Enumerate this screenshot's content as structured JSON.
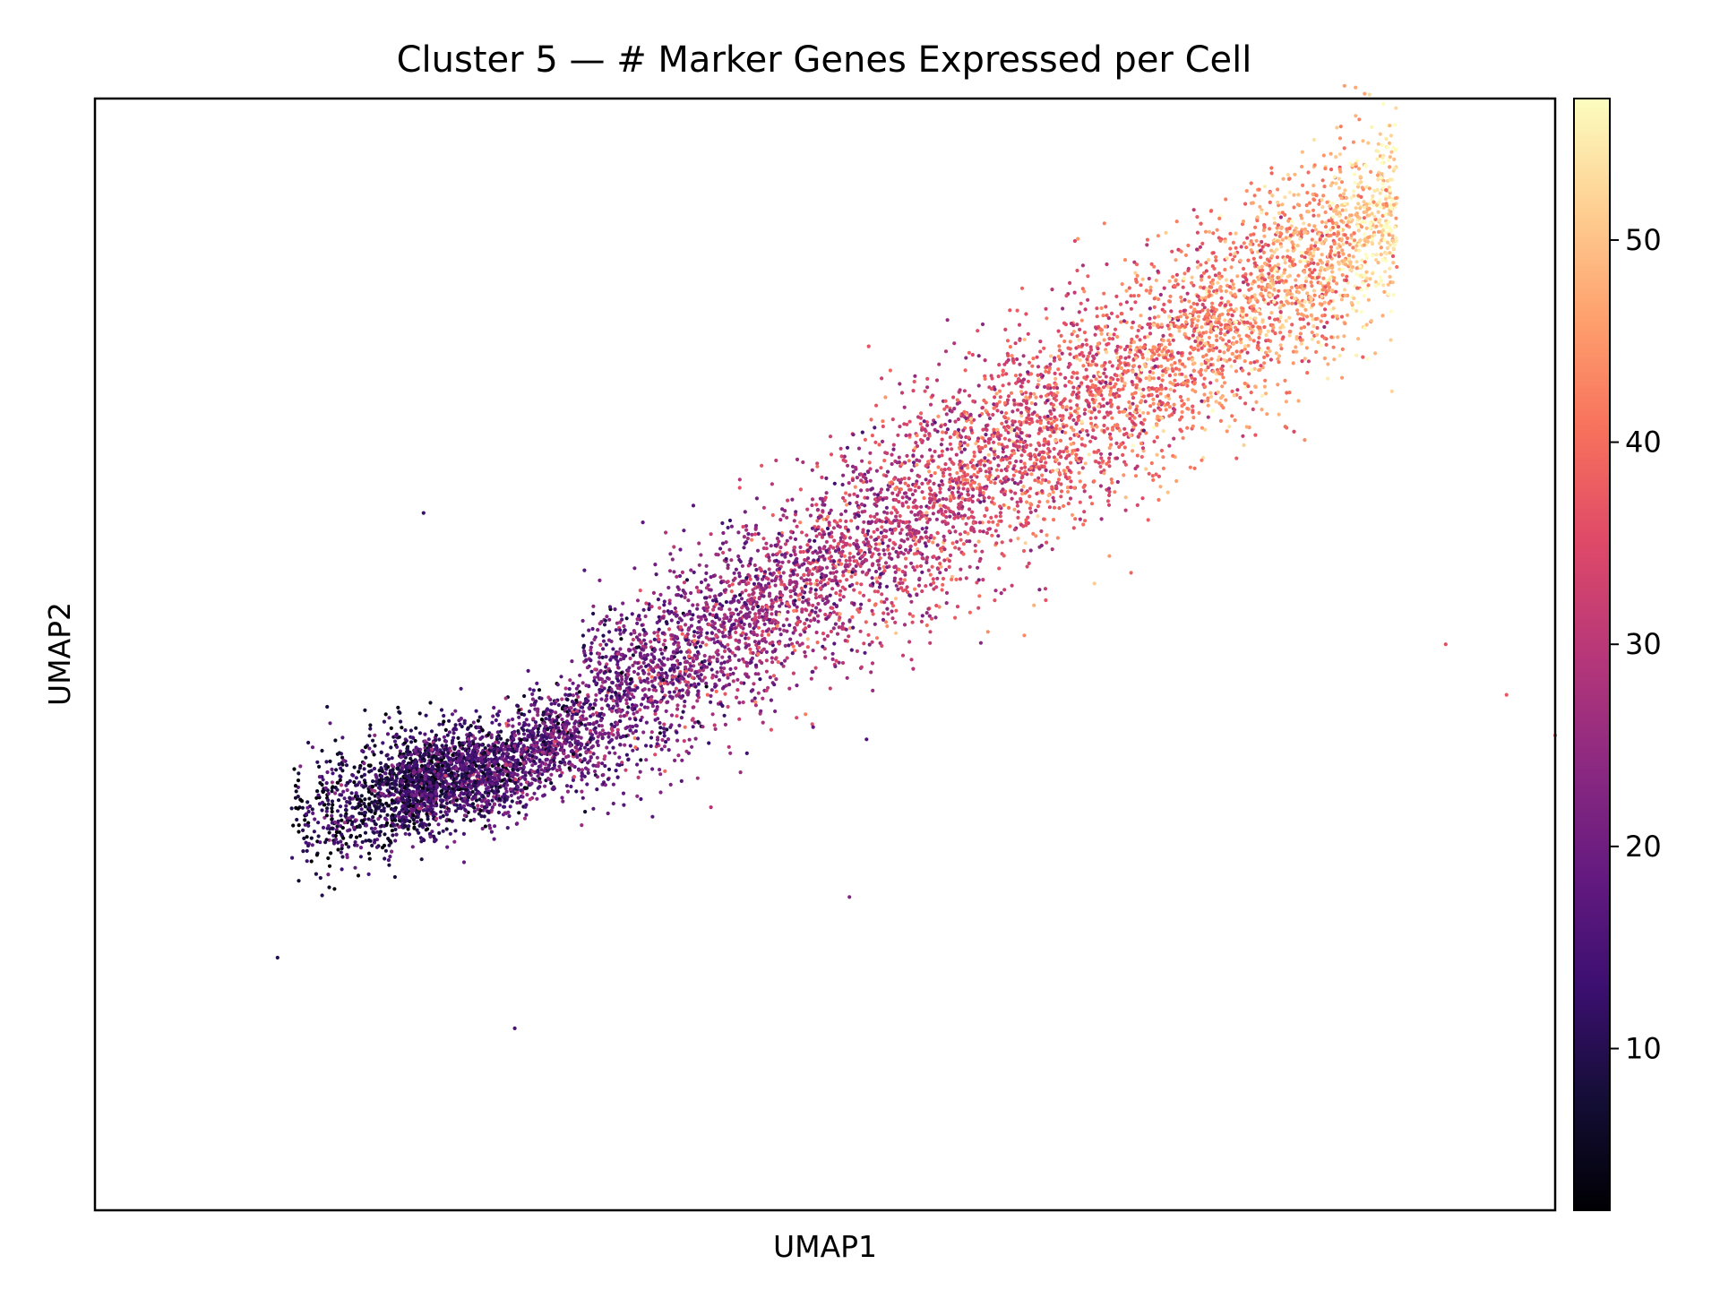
{
  "chart_data": {
    "type": "scatter",
    "title": "Cluster 5 — # Marker Genes Expressed per Cell",
    "xlabel": "UMAP1",
    "ylabel": "UMAP2",
    "x_ticks_shown": false,
    "y_ticks_shown": false,
    "grid": false,
    "legend": "none",
    "colormap": "magma",
    "colorbar": {
      "range": [
        2,
        57
      ],
      "ticks": [
        10,
        20,
        30,
        40,
        50
      ],
      "tick_labels": [
        "10",
        "20",
        "30",
        "40",
        "50"
      ],
      "placement": "right"
    },
    "magma_stops": [
      "#000004",
      "#140e36",
      "#3b0f70",
      "#641a80",
      "#8c2981",
      "#b73779",
      "#de4968",
      "#f7705c",
      "#fe9f6d",
      "#fecf92",
      "#fcfdbf"
    ],
    "point_color_trend": "values rise from about 10 at the lower-left end of the band to about 55 at the upper-right end",
    "point_count_approx": 16000,
    "axis_ranges": {
      "x": [
        -1,
        11
      ],
      "y": [
        -2,
        9
      ]
    },
    "outliers": [
      [
        0.5,
        0.5
      ],
      [
        1.7,
        4.9
      ],
      [
        5.2,
        1.1
      ],
      [
        7.95,
        6.9
      ],
      [
        10.6,
        3.1
      ],
      [
        11,
        2.7
      ],
      [
        2.45,
        -0.2
      ],
      [
        10.1,
        3.6
      ]
    ]
  }
}
